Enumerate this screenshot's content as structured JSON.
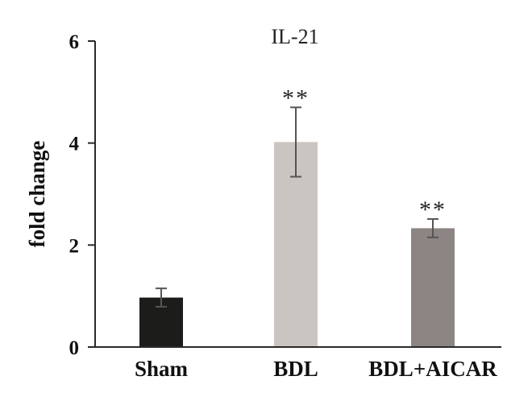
{
  "chart_data": {
    "type": "bar",
    "title": "IL-21",
    "xlabel": "",
    "ylabel": "fold change",
    "ylim": [
      0,
      6
    ],
    "yticks": [
      0,
      2,
      4,
      6
    ],
    "grid": false,
    "categories": [
      "Sham",
      "BDL",
      "BDL+AICAR"
    ],
    "values": [
      0.97,
      4.02,
      2.33
    ],
    "errors": [
      0.18,
      0.68,
      0.18
    ],
    "significance": [
      "",
      "**",
      "**"
    ],
    "colors": [
      "#1c1c1a",
      "#cbc5c2",
      "#8c8583"
    ]
  },
  "colors": {
    "axis": "#2a2a2a",
    "error_bar": "#555555"
  }
}
